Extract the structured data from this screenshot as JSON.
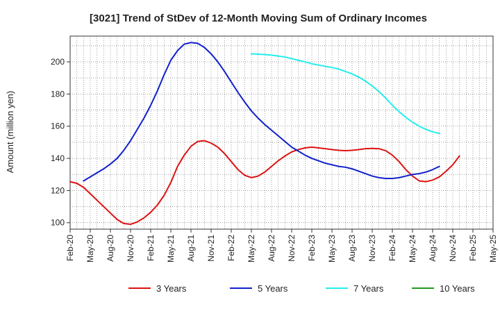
{
  "chart_data": {
    "type": "line",
    "title": "[3021]  Trend of StDev of 12-Month Moving Sum of Ordinary Incomes",
    "ylabel": "Amount (million yen)",
    "xlabel": "",
    "ylim": [
      96,
      216
    ],
    "yticks": [
      100,
      120,
      140,
      160,
      180,
      200
    ],
    "xticks": [
      "Feb-20",
      "May-20",
      "Aug-20",
      "Nov-20",
      "Feb-21",
      "May-21",
      "Aug-21",
      "Nov-21",
      "Feb-22",
      "May-22",
      "Aug-22",
      "Nov-22",
      "Feb-23",
      "May-23",
      "Aug-23",
      "Nov-23",
      "Feb-24",
      "May-24",
      "Aug-24",
      "Nov-24",
      "Feb-25",
      "May-25"
    ],
    "grid": true,
    "legend_position": "bottom",
    "series": [
      {
        "name": "3 Years",
        "color": "#dd1111",
        "start_index": 0,
        "values": [
          125.5,
          124.5,
          122,
          118,
          114,
          110,
          106,
          102,
          99.5,
          99,
          100.5,
          103,
          106.5,
          111,
          117,
          125,
          135,
          142,
          147.5,
          150.5,
          151,
          149.5,
          147,
          143,
          138,
          133,
          129.5,
          128,
          129,
          131.5,
          135,
          138.5,
          141.5,
          144,
          145.5,
          146.5,
          147,
          146.5,
          146,
          145.5,
          145,
          144.8,
          145,
          145.5,
          146,
          146.2,
          146,
          144.8,
          142,
          138,
          133,
          129,
          126,
          125.5,
          126.5,
          128.5,
          132,
          136,
          141.5
        ]
      },
      {
        "name": "5 Years",
        "color": "#1020cc",
        "start_index": 2,
        "values": [
          126,
          128.5,
          131,
          133.5,
          136.5,
          140,
          145,
          151,
          158,
          165,
          173,
          182,
          192,
          201,
          207,
          211,
          212,
          211.5,
          209,
          205,
          200,
          194,
          187.5,
          181,
          175,
          169.5,
          165,
          161,
          157.5,
          154,
          150.5,
          147,
          144.5,
          142,
          140,
          138.5,
          137,
          136,
          135,
          134.5,
          133.5,
          132,
          130.5,
          129,
          128,
          127.5,
          127.5,
          128,
          129,
          130,
          130.5,
          131.5,
          133,
          135
        ]
      },
      {
        "name": "7 Years",
        "color": "#22eeee",
        "start_index": 27,
        "values": [
          205,
          204.8,
          204.5,
          204.2,
          203.6,
          203,
          202,
          201,
          200,
          198.8,
          198,
          197.2,
          196.5,
          195.5,
          194,
          192.5,
          190.5,
          188,
          185,
          181.5,
          177.5,
          173,
          169,
          165.5,
          162.5,
          160,
          158,
          156.5,
          155.5
        ]
      },
      {
        "name": "10 Years",
        "color": "#229922",
        "start_index": 0,
        "values": []
      }
    ]
  }
}
